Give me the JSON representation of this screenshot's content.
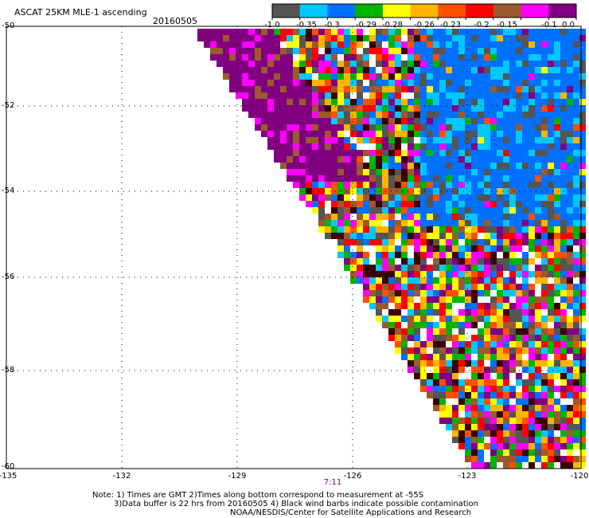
{
  "header": {
    "title": "ASCAT 25KM MLE-1 ascending",
    "date": "20160505"
  },
  "colorbar": {
    "labels": [
      "-1.0",
      "-0.35",
      "-0.3",
      "-0.29",
      "-0.28",
      "-0.26",
      "-0.23",
      "-0.2",
      "-0.15",
      "-0.1",
      "0.0"
    ],
    "colors": [
      "#555555",
      "#00c8ff",
      "#0070ff",
      "#00b400",
      "#ffff00",
      "#ffb400",
      "#ff5000",
      "#ff0000",
      "#9b5a2d",
      "#ff00ff",
      "#800080"
    ]
  },
  "axes": {
    "lat_labels": [
      "-50",
      "-52",
      "-54",
      "-56",
      "-58",
      "-60"
    ],
    "lon_labels": [
      "-135",
      "-132",
      "-129",
      "-126",
      "-123",
      "-120"
    ],
    "time_label": "7:11"
  },
  "notes": {
    "line1": "Note: 1) Times are GMT 2)Times along bottom correspond to measurement at -55S",
    "line2": "3)Data buffer is 22 hrs from 20160505 4) Black wind barbs indicate possible contamination",
    "line3": "NOAA/NESDIS/Center for Satellite Applications and Research"
  },
  "map": {
    "lat_range": [
      -60,
      -50
    ],
    "lon_range": [
      -135,
      -120
    ],
    "swath_color_codes": [
      "#555555",
      "#00c8ff",
      "#0070ff",
      "#00b400",
      "#ffff00",
      "#ffb400",
      "#ff5000",
      "#ff0000",
      "#9b5a2d",
      "#ff00ff",
      "#800080",
      "#ffffff",
      "#3a0000"
    ]
  }
}
